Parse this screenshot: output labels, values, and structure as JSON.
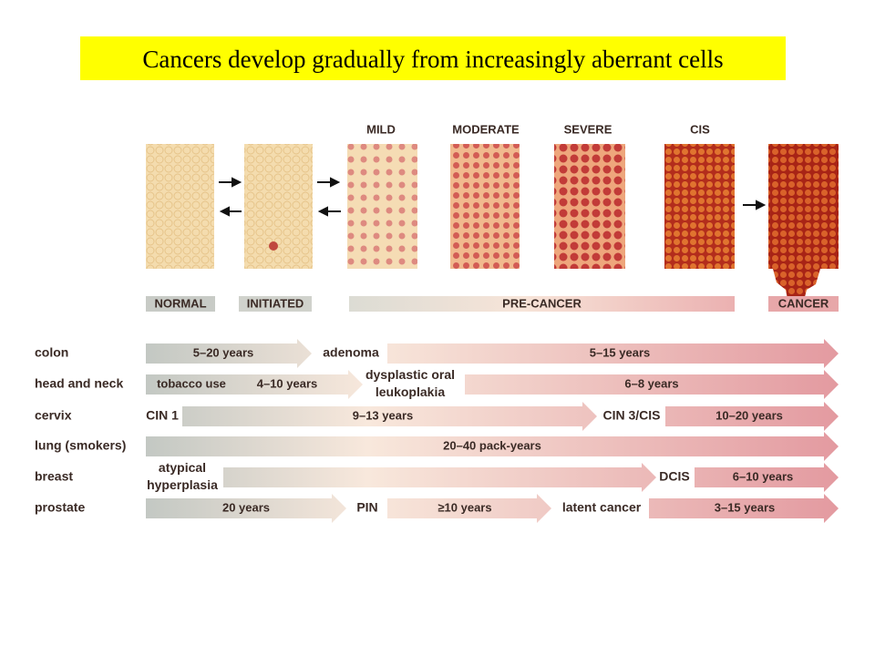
{
  "title": "Cancers develop gradually from increasingly aberrant cells",
  "grades": [
    "MILD",
    "MODERATE",
    "SEVERE",
    "CIS"
  ],
  "stages": [
    "NORMAL",
    "INITIATED",
    "PRE-CANCER",
    "CANCER"
  ],
  "rows": [
    {
      "label": "colon",
      "items": [
        {
          "arrow": [
            "5–20 years"
          ]
        },
        {
          "stage": [
            "adenoma"
          ]
        },
        {
          "arrow": [
            "5–15 years"
          ]
        }
      ]
    },
    {
      "label": "head and neck",
      "items": [
        {
          "arrow": [
            "tobacco use",
            "4–10 years"
          ]
        },
        {
          "stage": [
            "dysplastic oral",
            "leukoplakia"
          ]
        },
        {
          "arrow": [
            "6–8 years"
          ]
        }
      ]
    },
    {
      "label": "cervix",
      "items": [
        {
          "stage": [
            "CIN 1"
          ]
        },
        {
          "arrow": [
            "9–13 years"
          ]
        },
        {
          "stage": [
            "CIN 3/CIS"
          ]
        },
        {
          "arrow": [
            "10–20 years"
          ]
        }
      ]
    },
    {
      "label": "lung (smokers)",
      "items": [
        {
          "arrow": [
            "20–40 pack-years"
          ]
        }
      ]
    },
    {
      "label": "breast",
      "items": [
        {
          "stage": [
            "atypical",
            "hyperplasia"
          ]
        },
        {
          "arrow": []
        },
        {
          "stage": [
            "DCIS"
          ]
        },
        {
          "arrow": [
            "6–10 years"
          ]
        }
      ]
    },
    {
      "label": "prostate",
      "items": [
        {
          "arrow": [
            "20 years"
          ]
        },
        {
          "stage": [
            "PIN"
          ]
        },
        {
          "arrow": [
            "≥10 years"
          ]
        },
        {
          "stage": [
            "latent cancer"
          ]
        },
        {
          "arrow": [
            "3–15 years"
          ]
        }
      ]
    }
  ]
}
